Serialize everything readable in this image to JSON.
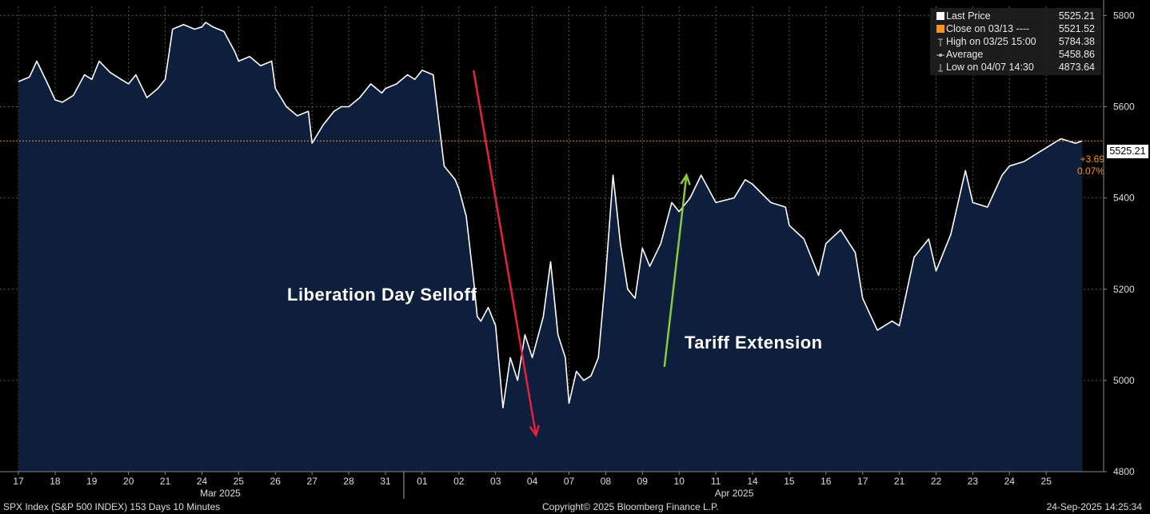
{
  "chart_data": {
    "type": "area",
    "security": "SPX Index (S&P 500 INDEX) 153 Days 10 Minutes",
    "copyright": "Copyright© 2025 Bloomberg Finance L.P.",
    "timestamp": "24-Sep-2025 14:25:34",
    "ylim": [
      4800,
      5820
    ],
    "y_ticks": [
      4800,
      5000,
      5200,
      5400,
      5600,
      5800
    ],
    "day_labels": [
      "17",
      "18",
      "19",
      "20",
      "21",
      "24",
      "25",
      "26",
      "27",
      "28",
      "31",
      "01",
      "02",
      "03",
      "04",
      "07",
      "08",
      "09",
      "10",
      "11",
      "14",
      "15",
      "16",
      "17",
      "21",
      "22",
      "23",
      "24",
      "25"
    ],
    "month_labels": [
      {
        "text": "Mar 2025",
        "day_index": 5.5
      },
      {
        "text": "Apr 2025",
        "day_index": 19.5
      }
    ],
    "x_unit": "trading day index (0 = Mar 17)",
    "series": [
      {
        "name": "Last Price",
        "x": [
          0,
          0.3,
          0.5,
          0.8,
          1,
          1.2,
          1.5,
          1.8,
          2,
          2.2,
          2.5,
          2.8,
          3,
          3.2,
          3.5,
          3.8,
          4,
          4.2,
          4.5,
          4.8,
          5,
          5.1,
          5.3,
          5.6,
          5.9,
          6,
          6.3,
          6.6,
          6.9,
          7,
          7.3,
          7.6,
          7.9,
          8,
          8.3,
          8.6,
          8.8,
          9,
          9.3,
          9.6,
          9.9,
          10,
          10.3,
          10.6,
          10.8,
          11,
          11.3,
          11.6,
          11.9,
          12,
          12.2,
          12.4,
          12.5,
          12.6,
          12.8,
          13,
          13.2,
          13.4,
          13.6,
          13.8,
          14,
          14.3,
          14.5,
          14.7,
          14.9,
          15,
          15.2,
          15.4,
          15.6,
          15.8,
          16,
          16.2,
          16.4,
          16.6,
          16.8,
          17,
          17.2,
          17.5,
          17.8,
          18,
          18.3,
          18.6,
          19,
          19.5,
          19.8,
          20,
          20.5,
          20.9,
          21,
          21.4,
          21.8,
          22,
          22.4,
          22.8,
          23,
          23.4,
          23.8,
          24,
          24.4,
          24.8,
          25,
          25.4,
          25.8,
          26,
          26.4,
          26.8,
          27,
          27.4,
          27.8,
          28,
          28.4,
          28.8,
          28.98
        ],
        "values": [
          5655,
          5665,
          5700,
          5650,
          5615,
          5610,
          5625,
          5670,
          5660,
          5700,
          5675,
          5660,
          5650,
          5670,
          5620,
          5640,
          5660,
          5770,
          5780,
          5770,
          5775,
          5785,
          5775,
          5765,
          5720,
          5700,
          5710,
          5690,
          5700,
          5640,
          5600,
          5580,
          5590,
          5520,
          5560,
          5590,
          5600,
          5600,
          5620,
          5650,
          5630,
          5640,
          5650,
          5670,
          5660,
          5680,
          5670,
          5470,
          5440,
          5420,
          5360,
          5220,
          5140,
          5130,
          5160,
          5120,
          4940,
          5050,
          5000,
          5100,
          5050,
          5140,
          5260,
          5100,
          5050,
          4950,
          5020,
          5000,
          5010,
          5050,
          5230,
          5450,
          5300,
          5200,
          5180,
          5290,
          5250,
          5300,
          5390,
          5370,
          5400,
          5450,
          5390,
          5400,
          5440,
          5430,
          5390,
          5380,
          5340,
          5310,
          5230,
          5300,
          5330,
          5280,
          5180,
          5110,
          5130,
          5120,
          5270,
          5310,
          5240,
          5320,
          5460,
          5390,
          5380,
          5450,
          5470,
          5480,
          5500,
          5510,
          5530,
          5520,
          5525.21
        ]
      }
    ],
    "last_price_line": 5525.21,
    "legend": [
      {
        "key": "last",
        "label": "Last Price",
        "value": "5525.21",
        "color": "#ffffff"
      },
      {
        "key": "close",
        "label": "Close on 03/13 ----",
        "value": "5521.52",
        "color": "#f7941d"
      },
      {
        "key": "high",
        "label": "High on 03/25 15:00",
        "value": "5784.38",
        "color": "#bbbbbb"
      },
      {
        "key": "avg",
        "label": "Average",
        "value": "5458.86",
        "color": "#bbbbbb"
      },
      {
        "key": "low",
        "label": "Low on 04/07 14:30",
        "value": "4873.64",
        "color": "#bbbbbb"
      }
    ],
    "price_tag": "5525.21",
    "change_abs": "+3.69",
    "change_pct": "0.07%",
    "annotations": [
      {
        "text": "Liberation Day Selloff",
        "arrow_color": "#e8203c",
        "arrow_from": [
          12.4,
          5680
        ],
        "arrow_to": [
          14.1,
          4880
        ]
      },
      {
        "text": "Tariff Extension",
        "arrow_color": "#8dc63f",
        "arrow_from": [
          17.6,
          5030
        ],
        "arrow_to": [
          18.2,
          5450
        ]
      }
    ],
    "colors": {
      "area_fill": "#0d1f3c",
      "line": "#ffffff",
      "grid": "#555555",
      "orange": "#f7941d",
      "background": "#000000"
    }
  }
}
